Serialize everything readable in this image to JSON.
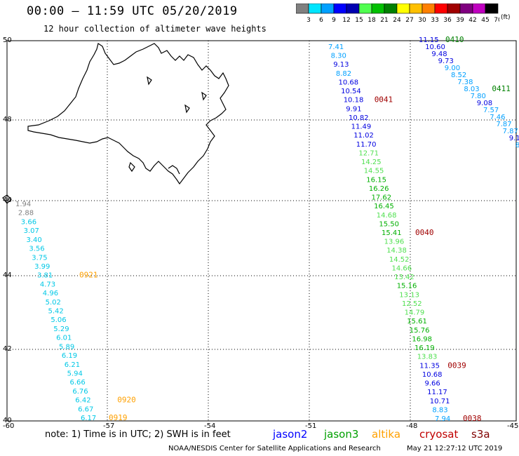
{
  "title": "00:00 – 11:59 UTC 05/20/2019",
  "subtitle": "12 hour collection of altimeter wave heights",
  "colorbar": {
    "unit": "(ft)",
    "ticks": [
      "3",
      "6",
      "9",
      "12",
      "15",
      "18",
      "21",
      "24",
      "27",
      "30",
      "33",
      "36",
      "39",
      "42",
      "45",
      "70"
    ],
    "colors": [
      "#808080",
      "#00e5ff",
      "#00a0ff",
      "#0000ff",
      "#0000b0",
      "#50ff50",
      "#00c000",
      "#008000",
      "#ffff00",
      "#ffc000",
      "#ff8000",
      "#ff0000",
      "#a00000",
      "#800080",
      "#c000c0",
      "#000000"
    ]
  },
  "axes": {
    "lat_labels": [
      "50",
      "48",
      "46",
      "44",
      "42",
      "40"
    ],
    "lon_labels": [
      "-60",
      "-57",
      "-54",
      "-51",
      "-48",
      "-45"
    ]
  },
  "note": "note: 1) Time is in UTC; 2) SWH is in feet",
  "legend": [
    {
      "name": "jason2",
      "color": "#0000ff"
    },
    {
      "name": "jason3",
      "color": "#00a000"
    },
    {
      "name": "altika",
      "color": "#ffa000"
    },
    {
      "name": "cryosat",
      "color": "#c00000"
    },
    {
      "name": "s3a",
      "color": "#800000"
    }
  ],
  "credit": "NOAA/NESDIS Center for Satellite Applications and Research",
  "timestamp": "May 21 12:27:12 UTC 2019",
  "tracks": [
    {
      "name": "track-left",
      "labels": [
        {
          "value": "1.94",
          "color": "#808080"
        },
        {
          "value": "2.88",
          "color": "#808080"
        },
        {
          "value": "3.66",
          "color": "#00c8e6"
        },
        {
          "value": "3.07",
          "color": "#00c8e6"
        },
        {
          "value": "3.40",
          "color": "#00c8e6"
        },
        {
          "value": "3.56",
          "color": "#00c8e6"
        },
        {
          "value": "3.75",
          "color": "#00c8e6"
        },
        {
          "value": "3.99",
          "color": "#00c8e6"
        },
        {
          "value": "3.81",
          "color": "#00c8e6"
        },
        {
          "value": "4.73",
          "color": "#00c8e6"
        },
        {
          "value": "4.96",
          "color": "#00c8e6"
        },
        {
          "value": "5.02",
          "color": "#00c8e6"
        },
        {
          "value": "5.42",
          "color": "#00c8e6"
        },
        {
          "value": "5.06",
          "color": "#00c8e6"
        },
        {
          "value": "5.29",
          "color": "#00c8e6"
        },
        {
          "value": "6.01",
          "color": "#00c8e6"
        },
        {
          "value": "5.89",
          "color": "#00c8e6"
        },
        {
          "value": "6.19",
          "color": "#00c8e6"
        },
        {
          "value": "6.21",
          "color": "#00c8e6"
        },
        {
          "value": "5.94",
          "color": "#00c8e6"
        },
        {
          "value": "6.66",
          "color": "#00c8e6"
        },
        {
          "value": "6.76",
          "color": "#00c8e6"
        },
        {
          "value": "6.42",
          "color": "#00c8e6"
        },
        {
          "value": "6.67",
          "color": "#00c8e6"
        },
        {
          "value": "6.17",
          "color": "#00c8e6"
        }
      ],
      "passes": [
        {
          "label": "0921",
          "color": "#ffa000",
          "index": 8
        },
        {
          "label": "0920",
          "color": "#ffa000",
          "index": 22
        },
        {
          "label": "0919",
          "color": "#ffa000",
          "index": 24
        }
      ]
    },
    {
      "name": "track-middle",
      "labels": [
        {
          "value": "7.41",
          "color": "#00a0ff"
        },
        {
          "value": "8.30",
          "color": "#00a0ff"
        },
        {
          "value": "9.13",
          "color": "#0000e0"
        },
        {
          "value": "8.82",
          "color": "#00a0ff"
        },
        {
          "value": "10.68",
          "color": "#0000e0"
        },
        {
          "value": "10.54",
          "color": "#0000e0"
        },
        {
          "value": "10.18",
          "color": "#0000e0"
        },
        {
          "value": "9.91",
          "color": "#0000e0"
        },
        {
          "value": "10.82",
          "color": "#0000e0"
        },
        {
          "value": "11.49",
          "color": "#0000e0"
        },
        {
          "value": "11.02",
          "color": "#0000e0"
        },
        {
          "value": "11.70",
          "color": "#0000e0"
        },
        {
          "value": "12.71",
          "color": "#50e050"
        },
        {
          "value": "14.25",
          "color": "#50e050"
        },
        {
          "value": "14.55",
          "color": "#50e050"
        },
        {
          "value": "16.15",
          "color": "#00b000"
        },
        {
          "value": "16.26",
          "color": "#00b000"
        },
        {
          "value": "17.62",
          "color": "#00b000"
        },
        {
          "value": "16.45",
          "color": "#00b000"
        },
        {
          "value": "14.68",
          "color": "#50e050"
        },
        {
          "value": "15.50",
          "color": "#00b000"
        },
        {
          "value": "15.41",
          "color": "#00b000"
        },
        {
          "value": "13.96",
          "color": "#50e050"
        },
        {
          "value": "14.38",
          "color": "#50e050"
        },
        {
          "value": "14.52",
          "color": "#50e050"
        },
        {
          "value": "14.66",
          "color": "#50e050"
        },
        {
          "value": "13.42",
          "color": "#50e050"
        },
        {
          "value": "15.16",
          "color": "#00b000"
        },
        {
          "value": "13.13",
          "color": "#50e050"
        },
        {
          "value": "12.52",
          "color": "#50e050"
        },
        {
          "value": "14.79",
          "color": "#50e050"
        },
        {
          "value": "15.61",
          "color": "#00b000"
        },
        {
          "value": "15.76",
          "color": "#00b000"
        },
        {
          "value": "16.98",
          "color": "#00b000"
        },
        {
          "value": "16.19",
          "color": "#00b000"
        },
        {
          "value": "13.83",
          "color": "#50e050"
        },
        {
          "value": "11.35",
          "color": "#0000e0"
        },
        {
          "value": "10.68",
          "color": "#0000e0"
        },
        {
          "value": "9.66",
          "color": "#0000e0"
        },
        {
          "value": "11.17",
          "color": "#0000e0"
        },
        {
          "value": "10.71",
          "color": "#0000e0"
        },
        {
          "value": "8.83",
          "color": "#00a0ff"
        },
        {
          "value": "7.94",
          "color": "#00a0ff"
        }
      ],
      "passes": [
        {
          "label": "0041",
          "color": "#a00000",
          "index": 6
        },
        {
          "label": "0040",
          "color": "#a00000",
          "index": 21
        },
        {
          "label": "0039",
          "color": "#a00000",
          "index": 36
        },
        {
          "label": "0038",
          "color": "#a00000",
          "index": 42
        }
      ]
    },
    {
      "name": "track-right",
      "labels": [
        {
          "value": "11.15",
          "color": "#0000e0"
        },
        {
          "value": "10.60",
          "color": "#0000e0"
        },
        {
          "value": "9.48",
          "color": "#0000e0"
        },
        {
          "value": "9.73",
          "color": "#0000e0"
        },
        {
          "value": "9.00",
          "color": "#00a0ff"
        },
        {
          "value": "8.52",
          "color": "#00a0ff"
        },
        {
          "value": "7.38",
          "color": "#00a0ff"
        },
        {
          "value": "8.03",
          "color": "#00a0ff"
        },
        {
          "value": "7.80",
          "color": "#00a0ff"
        },
        {
          "value": "9.08",
          "color": "#0000e0"
        },
        {
          "value": "7.57",
          "color": "#00a0ff"
        },
        {
          "value": "7.46",
          "color": "#00a0ff"
        },
        {
          "value": "7.87",
          "color": "#00a0ff"
        },
        {
          "value": "7.87",
          "color": "#00a0ff"
        },
        {
          "value": "9.1",
          "color": "#0000e0"
        },
        {
          "value": "8",
          "color": "#00a0ff"
        }
      ],
      "passes": [
        {
          "label": "0410",
          "color": "#008000",
          "index": 0
        },
        {
          "label": "0411",
          "color": "#008000",
          "index": 7
        }
      ]
    }
  ]
}
